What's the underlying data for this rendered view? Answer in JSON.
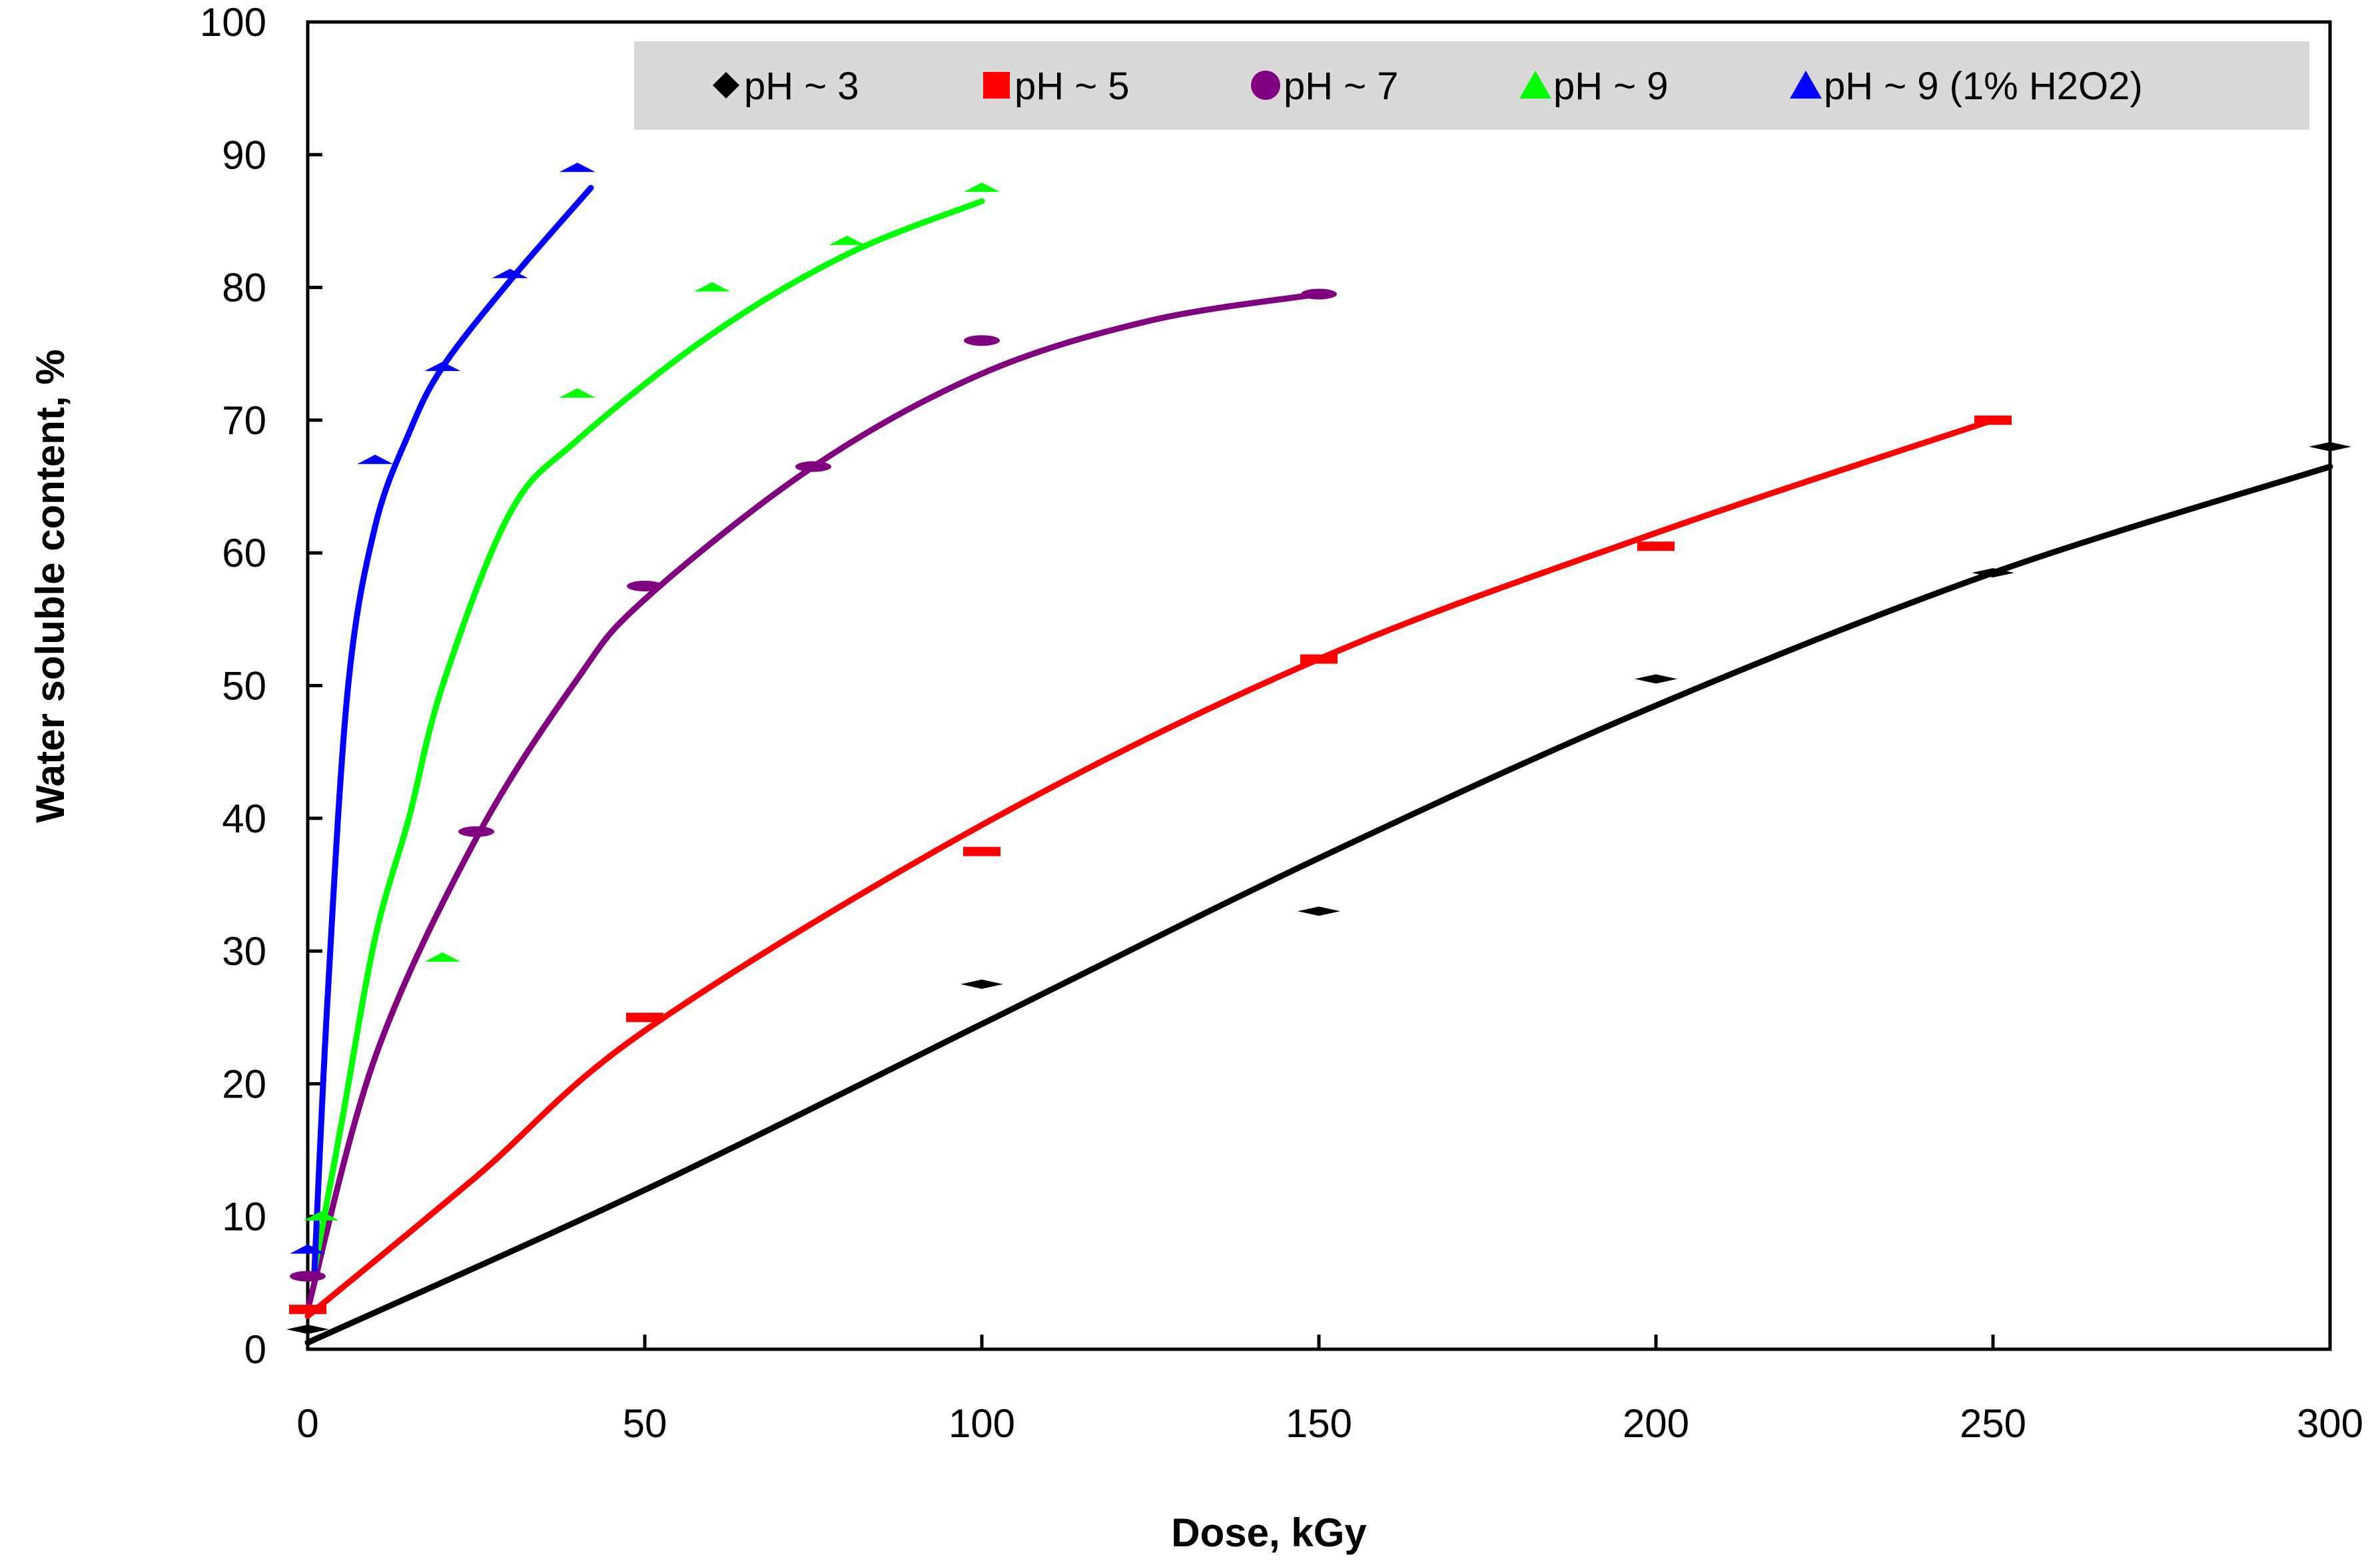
{
  "chart_data": {
    "type": "scatter",
    "title": "",
    "xlabel": "Dose, kGy",
    "ylabel": "Water soluble content, %",
    "xlim": [
      0,
      300
    ],
    "ylim": [
      0,
      100
    ],
    "x_ticks": [
      "0",
      "50",
      "100",
      "150",
      "200",
      "250",
      "300"
    ],
    "y_ticks": [
      "0",
      "10",
      "20",
      "30",
      "40",
      "50",
      "60",
      "70",
      "80",
      "90",
      "100"
    ],
    "grid": false,
    "legend_position": "top",
    "series": [
      {
        "name": "pH ~ 3",
        "color": "#000000",
        "marker": "diamond",
        "points": [
          [
            0,
            1.5
          ],
          [
            100,
            27.5
          ],
          [
            150,
            33
          ],
          [
            200,
            50.5
          ],
          [
            250,
            58.5
          ],
          [
            300,
            68
          ]
        ],
        "trend": [
          [
            0,
            0.5
          ],
          [
            50,
            12
          ],
          [
            100,
            24.5
          ],
          [
            150,
            37
          ],
          [
            200,
            48.5
          ],
          [
            250,
            58.5
          ],
          [
            300,
            66.5
          ]
        ]
      },
      {
        "name": "pH ~ 5",
        "color": "#ff0000",
        "marker": "square",
        "points": [
          [
            0,
            3
          ],
          [
            50,
            25
          ],
          [
            100,
            37.5
          ],
          [
            150,
            52
          ],
          [
            200,
            60.5
          ],
          [
            250,
            70
          ]
        ],
        "trend": [
          [
            0,
            2.5
          ],
          [
            25,
            13
          ],
          [
            50,
            24
          ],
          [
            100,
            39.5
          ],
          [
            150,
            52
          ],
          [
            200,
            61.5
          ],
          [
            250,
            70
          ]
        ]
      },
      {
        "name": "pH ~ 7",
        "color": "#800080",
        "marker": "circle",
        "points": [
          [
            0,
            5.5
          ],
          [
            25,
            39
          ],
          [
            50,
            57.5
          ],
          [
            75,
            66.5
          ],
          [
            100,
            76
          ],
          [
            150,
            79.5
          ]
        ],
        "trend": [
          [
            0,
            3
          ],
          [
            10,
            22
          ],
          [
            25,
            38.5
          ],
          [
            40,
            50.5
          ],
          [
            50,
            56.5
          ],
          [
            75,
            66.5
          ],
          [
            100,
            73.5
          ],
          [
            125,
            77.5
          ],
          [
            150,
            79.5
          ]
        ]
      },
      {
        "name": "pH ~ 9",
        "color": "#00ff00",
        "marker": "triangle",
        "points": [
          [
            2,
            10
          ],
          [
            20,
            29.5
          ],
          [
            40,
            72
          ],
          [
            60,
            80
          ],
          [
            80,
            83.5
          ],
          [
            100,
            87.5
          ]
        ],
        "trend": [
          [
            1,
            6
          ],
          [
            5,
            17
          ],
          [
            10,
            31
          ],
          [
            15,
            40
          ],
          [
            20,
            50
          ],
          [
            30,
            63
          ],
          [
            40,
            68.5
          ],
          [
            60,
            76.5
          ],
          [
            80,
            82.5
          ],
          [
            100,
            86.5
          ]
        ]
      },
      {
        "name": "pH ~ 9 (1% H2O2)",
        "color": "#0000ff",
        "marker": "triangle",
        "points": [
          [
            0,
            7.5
          ],
          [
            10,
            67
          ],
          [
            20,
            74
          ],
          [
            30,
            81
          ],
          [
            40,
            89
          ]
        ],
        "trend": [
          [
            1,
            6
          ],
          [
            3,
            27
          ],
          [
            6,
            50
          ],
          [
            10,
            62
          ],
          [
            15,
            69
          ],
          [
            20,
            74
          ],
          [
            30,
            80.5
          ],
          [
            42,
            87.5
          ]
        ]
      }
    ]
  }
}
